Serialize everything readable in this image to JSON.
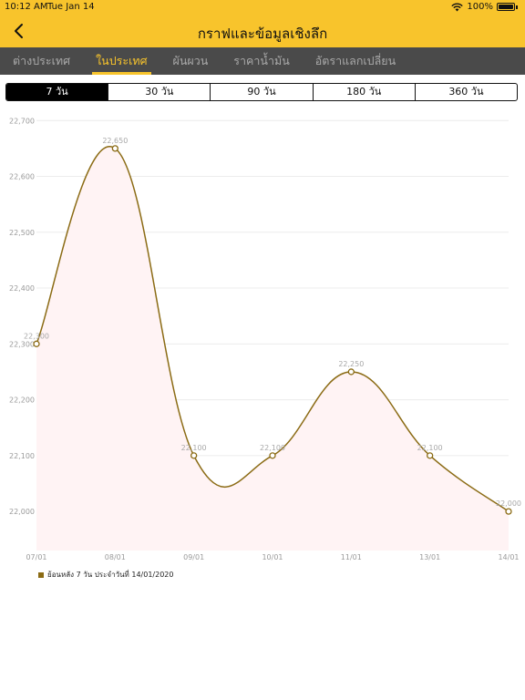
{
  "status": {
    "time": "10:12 AM",
    "date": "Tue Jan 14",
    "battery": "100%"
  },
  "nav": {
    "title": "กราฟและข้อมูลเชิงลึก"
  },
  "tabs": [
    {
      "label": "ต่างประเทศ",
      "active": false
    },
    {
      "label": "ในประเทศ",
      "active": true
    },
    {
      "label": "ผันผวน",
      "active": false
    },
    {
      "label": "ราคาน้ำมัน",
      "active": false
    },
    {
      "label": "อัตราแลกเปลี่ยน",
      "active": false
    }
  ],
  "ranges": [
    {
      "label": "7 วัน",
      "active": true
    },
    {
      "label": "30 วัน",
      "active": false
    },
    {
      "label": "90 วัน",
      "active": false
    },
    {
      "label": "180 วัน",
      "active": false
    },
    {
      "label": "360 วัน",
      "active": false
    }
  ],
  "colors": {
    "accent": "#f8c42c",
    "tabbar": "#4a4a4a",
    "line": "#8b6b14",
    "fill": "#fff3f4"
  },
  "chart_data": {
    "type": "area",
    "categories": [
      "07/01",
      "08/01",
      "09/01",
      "10/01",
      "11/01",
      "13/01",
      "14/01"
    ],
    "values": [
      22300,
      22650,
      22100,
      22100,
      22250,
      22100,
      22000
    ],
    "value_labels": [
      "22,300",
      "22,650",
      "22,100",
      "22,100",
      "22,250",
      "22,100",
      "22,000"
    ],
    "ylim": [
      21930,
      22720
    ],
    "yticks": [
      22000,
      22100,
      22200,
      22300,
      22400,
      22500,
      22600,
      22700
    ],
    "ytick_labels": [
      "22,000",
      "22,100",
      "22,200",
      "22,300",
      "22,400",
      "22,500",
      "22,600",
      "22,700"
    ],
    "grid": true,
    "legend": "ย้อนหลัง 7 วัน ประจำวันที่ 14/01/2020",
    "legend_position": "bottom-left"
  }
}
